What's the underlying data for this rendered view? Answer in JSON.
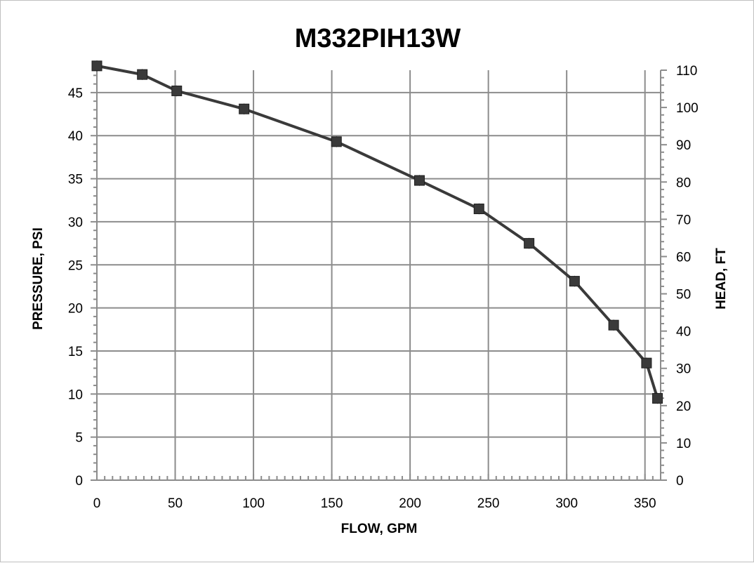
{
  "chart_data": {
    "type": "line",
    "title": "M332PIH13W",
    "xlabel": "FLOW, GPM",
    "ylabel": "PRESSURE, PSI",
    "y2label": "HEAD, FT",
    "xlim": [
      0,
      360
    ],
    "ylim": [
      0,
      47.6
    ],
    "y2lim": [
      0,
      110
    ],
    "xticks": [
      "0",
      "50",
      "100",
      "150",
      "200",
      "250",
      "300",
      "350"
    ],
    "yticks": [
      "0",
      "5",
      "10",
      "15",
      "20",
      "25",
      "30",
      "35",
      "40",
      "45"
    ],
    "y2ticks": [
      "0",
      "10",
      "20",
      "30",
      "40",
      "50",
      "60",
      "70",
      "80",
      "90",
      "100",
      "110"
    ],
    "grid": true,
    "legend": "none",
    "series": [
      {
        "x": [
          0,
          29,
          51,
          94,
          153,
          206,
          244,
          276,
          305,
          330,
          351,
          358
        ],
        "y": [
          48.1,
          47.1,
          45.2,
          43.1,
          39.3,
          34.8,
          31.5,
          27.5,
          23.1,
          18.0,
          13.6,
          9.5
        ],
        "color": "#3a3a3a",
        "marker": "square"
      }
    ]
  }
}
